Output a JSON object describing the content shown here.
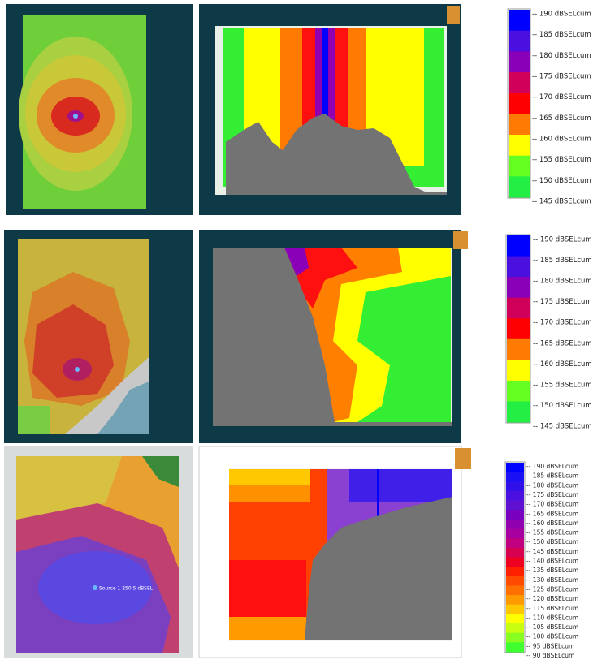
{
  "panels": [
    {
      "legend": {
        "labels": [
          "-- 190 dBSELcum",
          "-- 185 dBSELcum",
          "-- 180 dBSELcum",
          "-- 175 dBSELcum",
          "-- 170 dBSELcum",
          "-- 165 dBSELcum",
          "-- 160 dBSELcum",
          "-- 155 dBSELcum",
          "-- 150 dBSELcum",
          "-- 145 dBSELcum"
        ],
        "colors": [
          "#0000ff",
          "#4a10e0",
          "#8a00b8",
          "#d0005a",
          "#ff0000",
          "#ff7a00",
          "#ffff00",
          "#66ff22",
          "#22ee44"
        ]
      }
    },
    {
      "legend": {
        "labels": [
          "-- 190 dBSELcum",
          "-- 185 dBSELcum",
          "-- 180 dBSELcum",
          "-- 175 dBSELcum",
          "-- 170 dBSELcum",
          "-- 165 dBSELcum",
          "-- 160 dBSELcum",
          "-- 155 dBSELcum",
          "-- 150 dBSELcum",
          "-- 145 dBSELcum"
        ],
        "colors": [
          "#0000ff",
          "#4a10e0",
          "#8a00b8",
          "#d0005a",
          "#ff0000",
          "#ff7a00",
          "#ffff00",
          "#66ff22",
          "#22ee44"
        ]
      }
    },
    {
      "legend": {
        "labels": [
          "-- 190 dBSELcum",
          "-- 185 dBSELcum",
          "-- 180 dBSELcum",
          "-- 175 dBSELcum",
          "-- 170 dBSELcum",
          "-- 165 dBSELcum",
          "-- 160 dBSELcum",
          "-- 155 dBSELcum",
          "-- 150 dBSELcum",
          "-- 145 dBSELcum",
          "-- 140 dBSELcum",
          "-- 135 dBSELcum",
          "-- 130 dBSELcum",
          "-- 125 dBSELcum",
          "-- 120 dBSELcum",
          "-- 115 dBSELcum",
          "-- 110 dBSELcum",
          "-- 105 dBSELcum",
          "-- 100 dBSELcum",
          "-- 95 dBSELcum",
          "-- 90 dBSELcum"
        ],
        "colors": [
          "#0000ff",
          "#1a10f5",
          "#3010ea",
          "#4a10e0",
          "#6010d0",
          "#7a00c0",
          "#9000b0",
          "#a800a0",
          "#c00080",
          "#d80050",
          "#f00020",
          "#ff2000",
          "#ff4a00",
          "#ff7000",
          "#ff9a00",
          "#ffc800",
          "#ffff00",
          "#c8ff10",
          "#88ff20",
          "#40ff30"
        ]
      },
      "annotation": "Source 1 250,5 dBSEL"
    }
  ]
}
